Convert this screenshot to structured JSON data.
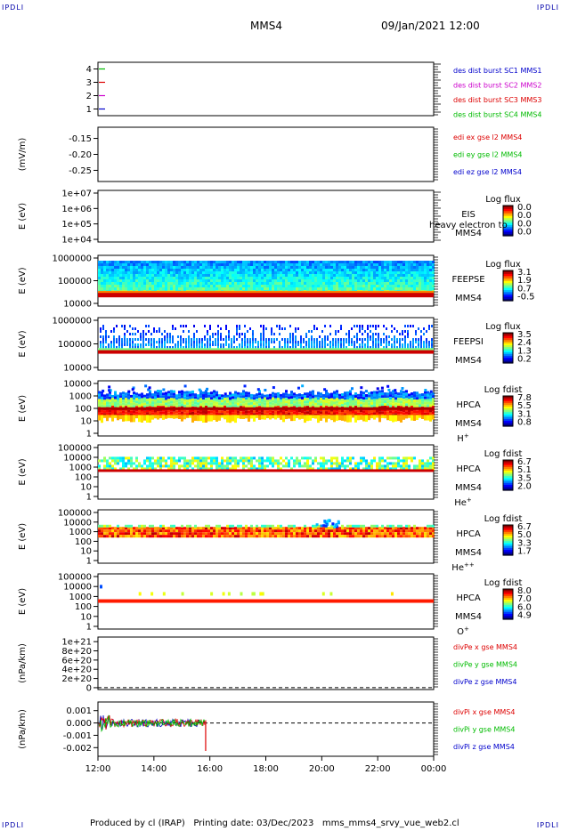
{
  "corner_labels": {
    "tl": "IPDLI",
    "tr": "IPDLI",
    "bl": "IPDLI",
    "br": "IPDLI"
  },
  "header": {
    "spacecraft": "MMS4",
    "datetime": "09/Jan/2021 12:00"
  },
  "footer": {
    "text": "Produced by cl (IRAP)   Printing date: 03/Dec/2023   mms_mms4_srvy_vue_web2.cl"
  },
  "chart_data": [
    {
      "id": "burst",
      "type": "line",
      "ylabel": "",
      "ytick_labels": [
        "1",
        "2",
        "3",
        "4"
      ],
      "ylim": [
        0.5,
        4.5
      ],
      "legend": [
        {
          "text": "des dist burst SC1 MMS1",
          "color": "#0000cc"
        },
        {
          "text": "des dist burst SC2 MMS2",
          "color": "#cc00cc"
        },
        {
          "text": "des dist burst SC3 MMS3",
          "color": "#dd0000"
        },
        {
          "text": "des dist burst SC4 MMS4",
          "color": "#00bb00"
        }
      ],
      "markers": [
        {
          "y": 4,
          "color": "#00bb00"
        },
        {
          "y": 3,
          "color": "#dd0000"
        },
        {
          "y": 2,
          "color": "#cc00cc"
        },
        {
          "y": 1,
          "color": "#0000cc"
        }
      ]
    },
    {
      "id": "edi",
      "type": "line",
      "ylabel": "(mV/m)",
      "ytick_labels": [
        "-0.15",
        "-0.20",
        "-0.25"
      ],
      "ytick_values": [
        -0.15,
        -0.2,
        -0.25
      ],
      "ylim": [
        -0.285,
        -0.115
      ],
      "legend": [
        {
          "text": "edi ex gse l2 MMS4",
          "color": "#dd0000"
        },
        {
          "text": "edi ey gse l2 MMS4",
          "color": "#00bb00"
        },
        {
          "text": "edi ez gse l2 MMS4",
          "color": "#0000cc"
        }
      ]
    },
    {
      "id": "eis",
      "type": "heatmap",
      "ylabel": "E (eV)",
      "ytick_labels": [
        "1e+07",
        "1e+06",
        "1e+05",
        "1e+04"
      ],
      "side_label": [
        "EIS",
        "MMS4"
      ],
      "side_note": "heavy electron to",
      "cb_title": "Log flux",
      "cb_ticks": [
        "0.0",
        "0.0",
        "0.0",
        "0.0"
      ]
    },
    {
      "id": "feepse",
      "type": "heatmap",
      "ylabel": "E (eV)",
      "ytick_labels": [
        "1000000",
        "100000",
        "10000"
      ],
      "side_label": [
        "FEEPSE",
        "MMS4"
      ],
      "cb_title": "Log flux",
      "cb_ticks": [
        "3.1",
        "1.9",
        "0.7",
        "-0.5"
      ]
    },
    {
      "id": "feepsi",
      "type": "heatmap",
      "ylabel": "E (eV)",
      "ytick_labels": [
        "1000000",
        "100000",
        "10000"
      ],
      "side_label": [
        "FEEPSI",
        "MMS4"
      ],
      "cb_title": "Log flux",
      "cb_ticks": [
        "3.5",
        "2.4",
        "1.3",
        "0.2"
      ]
    },
    {
      "id": "hpca_h",
      "type": "heatmap",
      "ylabel": "E (eV)",
      "ytick_labels": [
        "10000",
        "1000",
        "100",
        "10",
        "1"
      ],
      "side_label": [
        "HPCA",
        "MMS4"
      ],
      "species": "H",
      "species_sup": "+",
      "cb_title": "Log fdist",
      "cb_ticks": [
        "7.8",
        "5.5",
        "3.1",
        "0.8"
      ]
    },
    {
      "id": "hpca_he",
      "type": "heatmap",
      "ylabel": "E (eV)",
      "ytick_labels": [
        "100000",
        "10000",
        "1000",
        "100",
        "10",
        "1"
      ],
      "side_label": [
        "HPCA",
        "MMS4"
      ],
      "species": "He",
      "species_sup": "+",
      "cb_title": "Log fdist",
      "cb_ticks": [
        "6.7",
        "5.1",
        "3.5",
        "2.0"
      ]
    },
    {
      "id": "hpca_hepp",
      "type": "heatmap",
      "ylabel": "E (eV)",
      "ytick_labels": [
        "100000",
        "10000",
        "1000",
        "100",
        "10",
        "1"
      ],
      "side_label": [
        "HPCA",
        "MMS4"
      ],
      "species": "He",
      "species_sup": "++",
      "cb_title": "Log fdist",
      "cb_ticks": [
        "6.7",
        "5.0",
        "3.3",
        "1.7"
      ]
    },
    {
      "id": "hpca_o",
      "type": "heatmap",
      "ylabel": "E (eV)",
      "ytick_labels": [
        "100000",
        "10000",
        "1000",
        "100",
        "10",
        "1"
      ],
      "side_label": [
        "HPCA",
        "MMS4"
      ],
      "species": "O",
      "species_sup": "+",
      "cb_title": "Log fdist",
      "cb_ticks": [
        "8.0",
        "7.0",
        "6.0",
        "4.9"
      ]
    },
    {
      "id": "divpe",
      "type": "line",
      "ylabel": "(nPa/km)",
      "ytick_labels": [
        "1e+21",
        "8e+20",
        "6e+20",
        "4e+20",
        "2e+20",
        "0"
      ],
      "ytick_values": [
        1e+21,
        8e+20,
        6e+20,
        4e+20,
        2e+20,
        0
      ],
      "ylim": [
        -4e+19,
        1.1e+21
      ],
      "legend": [
        {
          "text": "divPe x gse MMS4",
          "color": "#dd0000"
        },
        {
          "text": "divPe y gse MMS4",
          "color": "#00bb00"
        },
        {
          "text": "divPe z gse MMS4",
          "color": "#0000cc"
        }
      ]
    },
    {
      "id": "divpi",
      "type": "line",
      "ylabel": "(nPa/km)",
      "ytick_labels": [
        "0.001",
        "0.000",
        "-0.001",
        "-0.002"
      ],
      "ytick_values": [
        0.001,
        0,
        -0.001,
        -0.002
      ],
      "ylim": [
        -0.0027,
        0.0017
      ],
      "legend": [
        {
          "text": "divPi x gse MMS4",
          "color": "#dd0000"
        },
        {
          "text": "divPi y gse MMS4",
          "color": "#00bb00"
        },
        {
          "text": "divPi z gse MMS4",
          "color": "#0000cc"
        }
      ]
    }
  ],
  "time_axis": {
    "labels": [
      "12:00",
      "14:00",
      "16:00",
      "18:00",
      "20:00",
      "22:00",
      "00:00"
    ]
  }
}
